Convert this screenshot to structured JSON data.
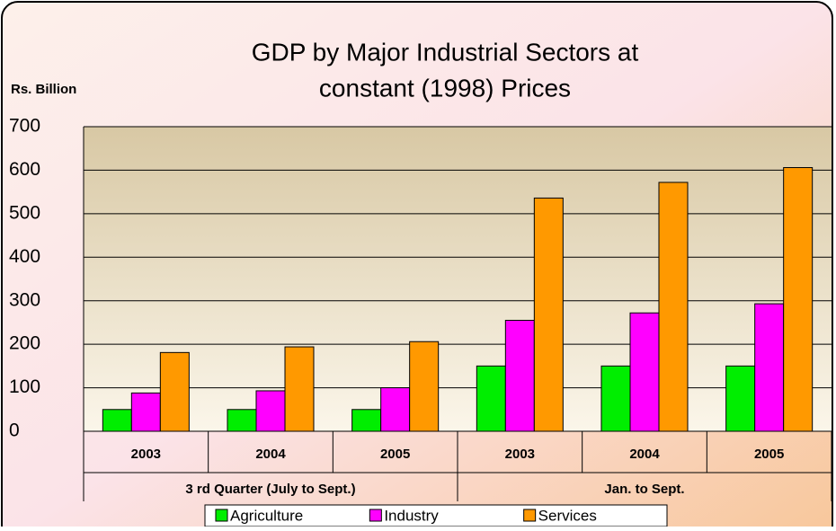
{
  "chart_data": {
    "type": "bar",
    "title": [
      "GDP by Major Industrial Sectors at",
      "constant (1998) Prices"
    ],
    "y_label": "Rs. Billion",
    "categories": [
      "2003",
      "2004",
      "2005",
      "2003",
      "2004",
      "2005"
    ],
    "groups": [
      "3 rd Quarter (July to Sept.)",
      "Jan. to Sept."
    ],
    "series": [
      {
        "name": "Agriculture",
        "color": "#00ee00",
        "values": [
          50,
          50,
          50,
          150,
          150,
          150
        ]
      },
      {
        "name": "Industry",
        "color": "#ff00ff",
        "values": [
          88,
          93,
          100,
          255,
          272,
          293
        ]
      },
      {
        "name": "Services",
        "color": "#ff9900",
        "values": [
          181,
          194,
          206,
          536,
          572,
          606
        ]
      }
    ],
    "ylim": [
      0,
      700
    ],
    "yticks": [
      0,
      100,
      200,
      300,
      400,
      500,
      600,
      700
    ],
    "grid": true
  }
}
